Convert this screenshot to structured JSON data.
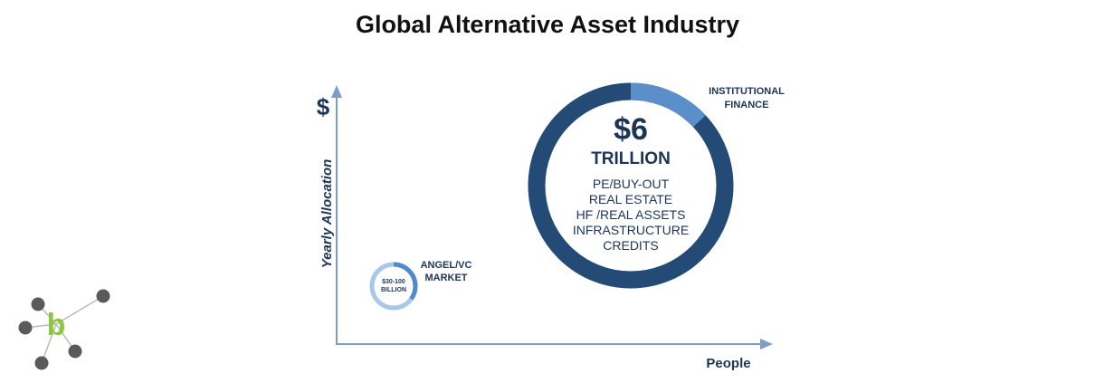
{
  "title": "Global Alternative Asset Industry",
  "axes": {
    "y_symbol": "$",
    "y_label": "Yearly Allocation",
    "x_label": "People"
  },
  "large_bubble": {
    "amount": "$6",
    "unit": "TRILLION",
    "items": [
      "PE/BUY-OUT",
      "REAL ESTATE",
      "HF /REAL ASSETS",
      "INFRASTRUCTURE",
      "CREDITS"
    ],
    "callout": [
      "INSTITUTIONAL",
      "FINANCE"
    ],
    "highlight_fraction": 0.13
  },
  "small_bubble": {
    "value": [
      "$30-100",
      "BILLION"
    ],
    "callout": [
      "ANGEL/VC",
      "MARKET"
    ],
    "highlight_fraction": 0.35
  },
  "logo": {
    "letter": "b"
  },
  "colors": {
    "dark_navy": "#1c3557",
    "ring_dark": "#234b75",
    "ring_light": "#5b8fc9",
    "axis": "#7d9ec6",
    "logo_node": "#5a5a5a",
    "logo_letter": "#8dc63f"
  }
}
